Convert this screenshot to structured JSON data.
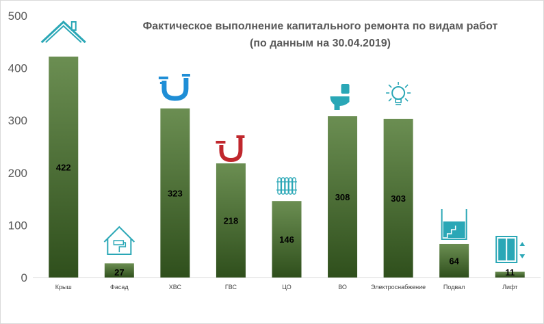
{
  "chart_data": {
    "type": "bar",
    "title": "Фактическое выполнение капитального ремонта по видам работ",
    "subtitle": "(по данным на 30.04.2019)",
    "categories": [
      "Крыш",
      "Фасад",
      "ХВС",
      "ГВС",
      "ЦО",
      "ВО",
      "Электроснабжение",
      "Подвал",
      "Лифт"
    ],
    "values": [
      422,
      27,
      323,
      218,
      146,
      308,
      303,
      64,
      11
    ],
    "icons": [
      "house-roof-icon",
      "house-painting-icon",
      "cold-water-pipe-icon",
      "hot-water-pipe-icon",
      "radiator-icon",
      "toilet-icon",
      "light-bulb-icon",
      "basement-icon",
      "elevator-icon"
    ],
    "ylim": [
      0,
      500
    ],
    "yticks": [
      0,
      100,
      200,
      300,
      400,
      500
    ],
    "grid": false,
    "legend": "none",
    "colors": {
      "bar_top": "#6b8e52",
      "bar_bottom": "#2f4f1c",
      "axis": "#d9d9d9",
      "icon_teal": "#2aa7b6",
      "icon_blue": "#1f8ed6",
      "icon_red": "#c0272d"
    }
  }
}
